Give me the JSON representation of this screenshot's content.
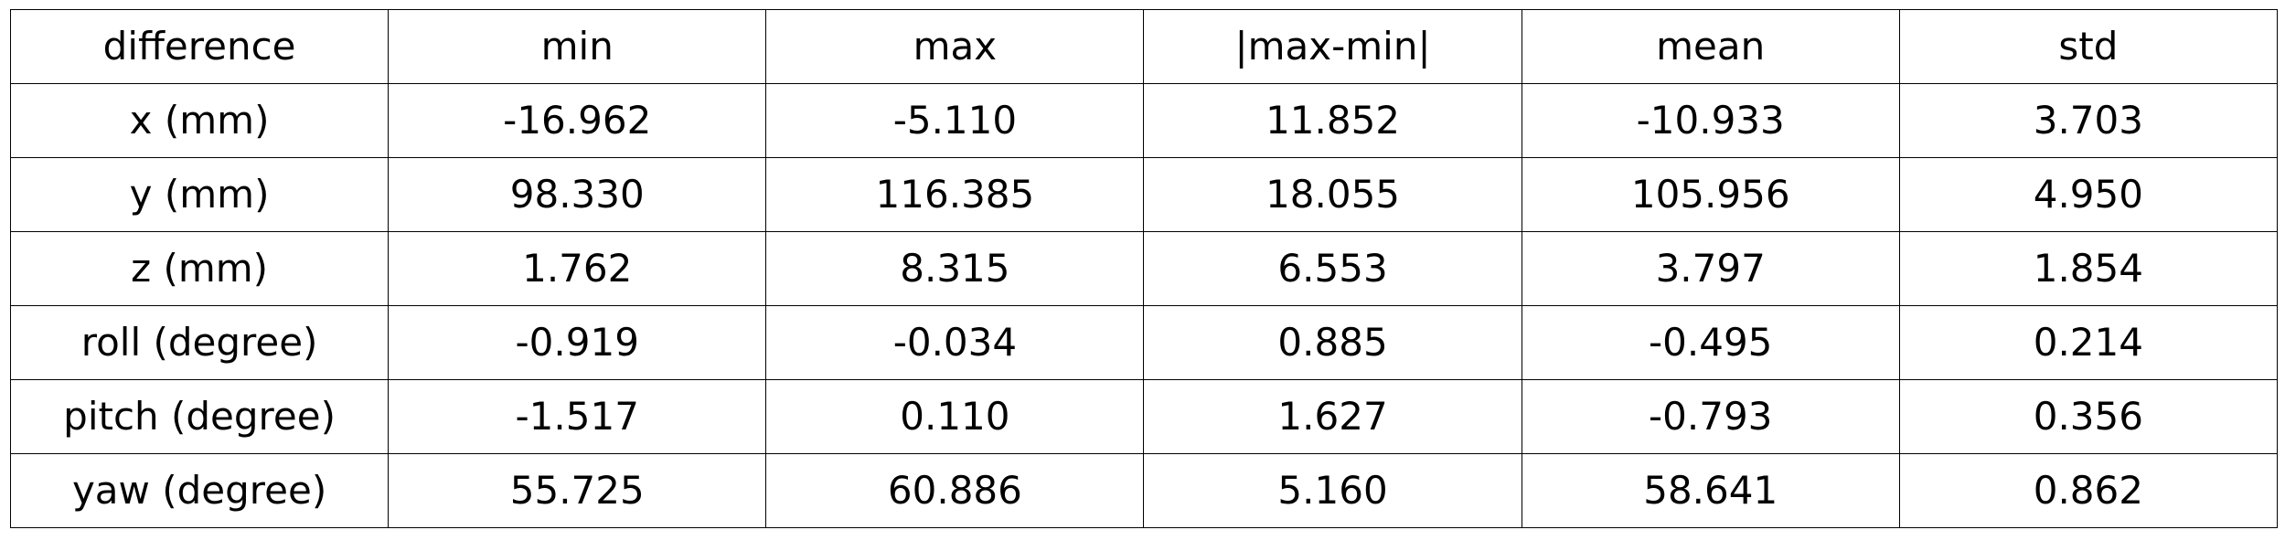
{
  "chart_data": {
    "type": "table",
    "columns": [
      "difference",
      "min",
      "max",
      "|max-min|",
      "mean",
      "std"
    ],
    "rows": [
      [
        "x (mm)",
        "-16.962",
        "-5.110",
        "11.852",
        "-10.933",
        "3.703"
      ],
      [
        "y (mm)",
        "98.330",
        "116.385",
        "18.055",
        "105.956",
        "4.950"
      ],
      [
        "z (mm)",
        "1.762",
        "8.315",
        "6.553",
        "3.797",
        "1.854"
      ],
      [
        "roll (degree)",
        "-0.919",
        "-0.034",
        "0.885",
        "-0.495",
        "0.214"
      ],
      [
        "pitch (degree)",
        "-1.517",
        "0.110",
        "1.627",
        "-0.793",
        "0.356"
      ],
      [
        "yaw (degree)",
        "55.725",
        "60.886",
        "5.160",
        "58.641",
        "0.862"
      ]
    ]
  }
}
